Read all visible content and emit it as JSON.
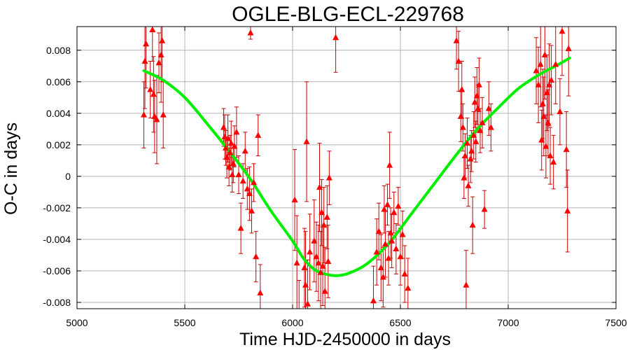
{
  "chart_data": {
    "type": "scatter",
    "title": "OGLE-BLG-ECL-229768",
    "xlabel": "Time HJD-2450000 in days",
    "ylabel": "O-C in days",
    "xlim": [
      5000,
      7500
    ],
    "ylim": [
      -0.0084,
      0.0095
    ],
    "x_ticks": [
      5000,
      5500,
      6000,
      6500,
      7000,
      7500
    ],
    "y_ticks": [
      0.008,
      0.006,
      0.004,
      0.002,
      0,
      -0.002,
      -0.004,
      -0.006,
      -0.008
    ],
    "y_tick_labels": [
      "0.008",
      "0.006",
      "0.004",
      "0.002",
      "0",
      "-0.002",
      "-0.004",
      "-0.006",
      "-0.008"
    ],
    "grid": true,
    "legend": "none",
    "colors": {
      "points": "#ff0000",
      "errorbars": "#cc0000",
      "fit": "#00ee00",
      "grid": "#b4b4b4"
    },
    "series": [
      {
        "kind": "points-with-errorbars",
        "marker": "triangle",
        "points": [
          {
            "x": 5310,
            "y": 0.0039,
            "err": 0.0021
          },
          {
            "x": 5315,
            "y": 0.0073,
            "err": 0.003
          },
          {
            "x": 5320,
            "y": 0.0084,
            "err": 0.0028
          },
          {
            "x": 5340,
            "y": 0.0055,
            "err": 0.0018
          },
          {
            "x": 5350,
            "y": 0.0093,
            "err": 0.002
          },
          {
            "x": 5355,
            "y": 0.0052,
            "err": 0.0024
          },
          {
            "x": 5360,
            "y": 0.0038,
            "err": 0.0023
          },
          {
            "x": 5370,
            "y": 0.0036,
            "err": 0.0028
          },
          {
            "x": 5380,
            "y": 0.0072,
            "err": 0.0019
          },
          {
            "x": 5390,
            "y": 0.0077,
            "err": 0.003
          },
          {
            "x": 5395,
            "y": 0.0086,
            "err": 0.0026
          },
          {
            "x": 5400,
            "y": 0.0039,
            "err": 0.0021
          },
          {
            "x": 5680,
            "y": 0.0031,
            "err": 0.0012
          },
          {
            "x": 5685,
            "y": 0.0025,
            "err": 0.0014
          },
          {
            "x": 5690,
            "y": 0.0018,
            "err": 0.0011
          },
          {
            "x": 5695,
            "y": 0.0012,
            "err": 0.0013
          },
          {
            "x": 5700,
            "y": 0.0024,
            "err": 0.0015
          },
          {
            "x": 5705,
            "y": 0.0006,
            "err": 0.0012
          },
          {
            "x": 5710,
            "y": 0.0015,
            "err": 0.0011
          },
          {
            "x": 5715,
            "y": 0.0021,
            "err": 0.0014
          },
          {
            "x": 5720,
            "y": 0.0001,
            "err": 0.0011
          },
          {
            "x": 5725,
            "y": 0.0008,
            "err": 0.0012
          },
          {
            "x": 5730,
            "y": 0.0019,
            "err": 0.0013
          },
          {
            "x": 5740,
            "y": 0.0028,
            "err": 0.0016
          },
          {
            "x": 5750,
            "y": 0.0001,
            "err": 0.0012
          },
          {
            "x": 5760,
            "y": -0.0033,
            "err": 0.0016
          },
          {
            "x": 5770,
            "y": -0.0003,
            "err": 0.0011
          },
          {
            "x": 5780,
            "y": 0.0016,
            "err": 0.0012
          },
          {
            "x": 5790,
            "y": -0.0008,
            "err": 0.0013
          },
          {
            "x": 5800,
            "y": -0.0011,
            "err": 0.0017
          },
          {
            "x": 5805,
            "y": 0.0091,
            "err": 0.0004
          },
          {
            "x": 5810,
            "y": -0.0022,
            "err": 0.0014
          },
          {
            "x": 5820,
            "y": -0.0004,
            "err": 0.0012
          },
          {
            "x": 5830,
            "y": -0.0051,
            "err": 0.0016
          },
          {
            "x": 5840,
            "y": 0.0026,
            "err": 0.0013
          },
          {
            "x": 5850,
            "y": -0.0074,
            "err": 0.0018
          },
          {
            "x": 6010,
            "y": -0.0015,
            "err": 0.0032
          },
          {
            "x": 6020,
            "y": -0.0055,
            "err": 0.003
          },
          {
            "x": 6030,
            "y": -0.0092,
            "err": 0.0026
          },
          {
            "x": 6055,
            "y": -0.0058,
            "err": 0.0025
          },
          {
            "x": 6060,
            "y": -0.0069,
            "err": 0.0034
          },
          {
            "x": 6065,
            "y": 0.0022,
            "err": 0.0038
          },
          {
            "x": 6070,
            "y": -0.0081,
            "err": 0.0028
          },
          {
            "x": 6080,
            "y": -0.0048,
            "err": 0.0024
          },
          {
            "x": 6100,
            "y": -0.0041,
            "err": 0.0026
          },
          {
            "x": 6110,
            "y": -0.0051,
            "err": 0.0022
          },
          {
            "x": 6120,
            "y": -0.0055,
            "err": 0.0024
          },
          {
            "x": 6125,
            "y": -0.0007,
            "err": 0.0028
          },
          {
            "x": 6130,
            "y": -0.0061,
            "err": 0.0026
          },
          {
            "x": 6135,
            "y": -0.0023,
            "err": 0.0021
          },
          {
            "x": 6140,
            "y": -0.0057,
            "err": 0.0025
          },
          {
            "x": 6145,
            "y": -0.0031,
            "err": 0.0024
          },
          {
            "x": 6150,
            "y": -0.0073,
            "err": 0.0028
          },
          {
            "x": 6160,
            "y": -0.0026,
            "err": 0.002
          },
          {
            "x": 6165,
            "y": -0.0054,
            "err": 0.0023
          },
          {
            "x": 6170,
            "y": -0.0001,
            "err": 0.0017
          },
          {
            "x": 6200,
            "y": 0.0088,
            "err": 0.0022
          },
          {
            "x": 6375,
            "y": -0.0079,
            "err": 0.0022
          },
          {
            "x": 6390,
            "y": -0.0048,
            "err": 0.0021
          },
          {
            "x": 6400,
            "y": -0.0035,
            "err": 0.0018
          },
          {
            "x": 6410,
            "y": -0.0058,
            "err": 0.0021
          },
          {
            "x": 6420,
            "y": -0.0064,
            "err": 0.0019
          },
          {
            "x": 6425,
            "y": -0.0021,
            "err": 0.0015
          },
          {
            "x": 6430,
            "y": -0.0043,
            "err": 0.0021
          },
          {
            "x": 6440,
            "y": -0.0018,
            "err": 0.0013
          },
          {
            "x": 6445,
            "y": -0.0052,
            "err": 0.0017
          },
          {
            "x": 6450,
            "y": 0.0007,
            "err": 0.0021
          },
          {
            "x": 6455,
            "y": -0.0036,
            "err": 0.0016
          },
          {
            "x": 6460,
            "y": -0.0041,
            "err": 0.0017
          },
          {
            "x": 6470,
            "y": -0.0023,
            "err": 0.0013
          },
          {
            "x": 6480,
            "y": -0.0046,
            "err": 0.0016
          },
          {
            "x": 6490,
            "y": -0.0019,
            "err": 0.0012
          },
          {
            "x": 6500,
            "y": -0.0051,
            "err": 0.0018
          },
          {
            "x": 6510,
            "y": -0.0037,
            "err": 0.0015
          },
          {
            "x": 6520,
            "y": -0.0062,
            "err": 0.0018
          },
          {
            "x": 6535,
            "y": -0.0071,
            "err": 0.0019
          },
          {
            "x": 6760,
            "y": 0.0086,
            "err": 0.0018
          },
          {
            "x": 6770,
            "y": 0.0073,
            "err": 0.0019
          },
          {
            "x": 6780,
            "y": 0.0038,
            "err": 0.0016
          },
          {
            "x": 6785,
            "y": 0.0055,
            "err": 0.0018
          },
          {
            "x": 6790,
            "y": 0.0031,
            "err": 0.0015
          },
          {
            "x": 6795,
            "y": -0.0001,
            "err": 0.0013
          },
          {
            "x": 6800,
            "y": 0.0013,
            "err": 0.0014
          },
          {
            "x": 6805,
            "y": -0.0069,
            "err": 0.0022
          },
          {
            "x": 6810,
            "y": 0.0021,
            "err": 0.0016
          },
          {
            "x": 6815,
            "y": -0.0006,
            "err": 0.0013
          },
          {
            "x": 6825,
            "y": 0.0011,
            "err": 0.0015
          },
          {
            "x": 6830,
            "y": 0.0016,
            "err": 0.0013
          },
          {
            "x": 6835,
            "y": -0.0031,
            "err": 0.0018
          },
          {
            "x": 6840,
            "y": 0.0026,
            "err": 0.0015
          },
          {
            "x": 6845,
            "y": 0.0047,
            "err": 0.0016
          },
          {
            "x": 6850,
            "y": 0.0022,
            "err": 0.0013
          },
          {
            "x": 6855,
            "y": 0.0051,
            "err": 0.0018
          },
          {
            "x": 6860,
            "y": 0.0043,
            "err": 0.0015
          },
          {
            "x": 6865,
            "y": 0.0058,
            "err": 0.0017
          },
          {
            "x": 6870,
            "y": 0.0029,
            "err": 0.0014
          },
          {
            "x": 6880,
            "y": 0.0034,
            "err": 0.0016
          },
          {
            "x": 6890,
            "y": -0.0021,
            "err": 0.0012
          },
          {
            "x": 6910,
            "y": 0.0043,
            "err": 0.0017
          },
          {
            "x": 6920,
            "y": 0.0031,
            "err": 0.0015
          },
          {
            "x": 7130,
            "y": 0.0067,
            "err": 0.0021
          },
          {
            "x": 7140,
            "y": 0.0058,
            "err": 0.0024
          },
          {
            "x": 7150,
            "y": 0.0071,
            "err": 0.0027
          },
          {
            "x": 7155,
            "y": 0.0023,
            "err": 0.0019
          },
          {
            "x": 7160,
            "y": 0.0046,
            "err": 0.0022
          },
          {
            "x": 7165,
            "y": 0.0038,
            "err": 0.0025
          },
          {
            "x": 7170,
            "y": 0.0077,
            "err": 0.0028
          },
          {
            "x": 7175,
            "y": 0.0019,
            "err": 0.002
          },
          {
            "x": 7180,
            "y": 0.0053,
            "err": 0.0024
          },
          {
            "x": 7185,
            "y": 0.0034,
            "err": 0.0021
          },
          {
            "x": 7190,
            "y": 0.0058,
            "err": 0.0026
          },
          {
            "x": 7195,
            "y": 0.0013,
            "err": 0.0018
          },
          {
            "x": 7200,
            "y": 0.0061,
            "err": 0.0022
          },
          {
            "x": 7210,
            "y": 0.0009,
            "err": 0.0017
          },
          {
            "x": 7220,
            "y": 0.0071,
            "err": 0.0025
          },
          {
            "x": 7240,
            "y": 0.0041,
            "err": 0.0021
          },
          {
            "x": 7250,
            "y": 0.0092,
            "err": 0.0028
          },
          {
            "x": 7270,
            "y": 0.0017,
            "err": 0.0024
          },
          {
            "x": 7275,
            "y": -0.0022,
            "err": 0.0026
          },
          {
            "x": 7280,
            "y": 0.0081,
            "err": 0.003
          }
        ]
      },
      {
        "kind": "fit-curve",
        "points": [
          {
            "x": 5310,
            "y": 0.0067
          },
          {
            "x": 5400,
            "y": 0.0061
          },
          {
            "x": 5500,
            "y": 0.005
          },
          {
            "x": 5600,
            "y": 0.0034
          },
          {
            "x": 5700,
            "y": 0.0017
          },
          {
            "x": 5800,
            "y": -0.0001
          },
          {
            "x": 5900,
            "y": -0.0022
          },
          {
            "x": 6000,
            "y": -0.0041
          },
          {
            "x": 6050,
            "y": -0.0052
          },
          {
            "x": 6100,
            "y": -0.0059
          },
          {
            "x": 6150,
            "y": -0.0062
          },
          {
            "x": 6210,
            "y": -0.0063
          },
          {
            "x": 6270,
            "y": -0.0061
          },
          {
            "x": 6350,
            "y": -0.0055
          },
          {
            "x": 6450,
            "y": -0.0042
          },
          {
            "x": 6550,
            "y": -0.0024
          },
          {
            "x": 6650,
            "y": -0.0006
          },
          {
            "x": 6750,
            "y": 0.0012
          },
          {
            "x": 6850,
            "y": 0.0029
          },
          {
            "x": 6950,
            "y": 0.0043
          },
          {
            "x": 7050,
            "y": 0.0056
          },
          {
            "x": 7150,
            "y": 0.0065
          },
          {
            "x": 7220,
            "y": 0.007
          },
          {
            "x": 7285,
            "y": 0.0075
          }
        ]
      }
    ]
  }
}
